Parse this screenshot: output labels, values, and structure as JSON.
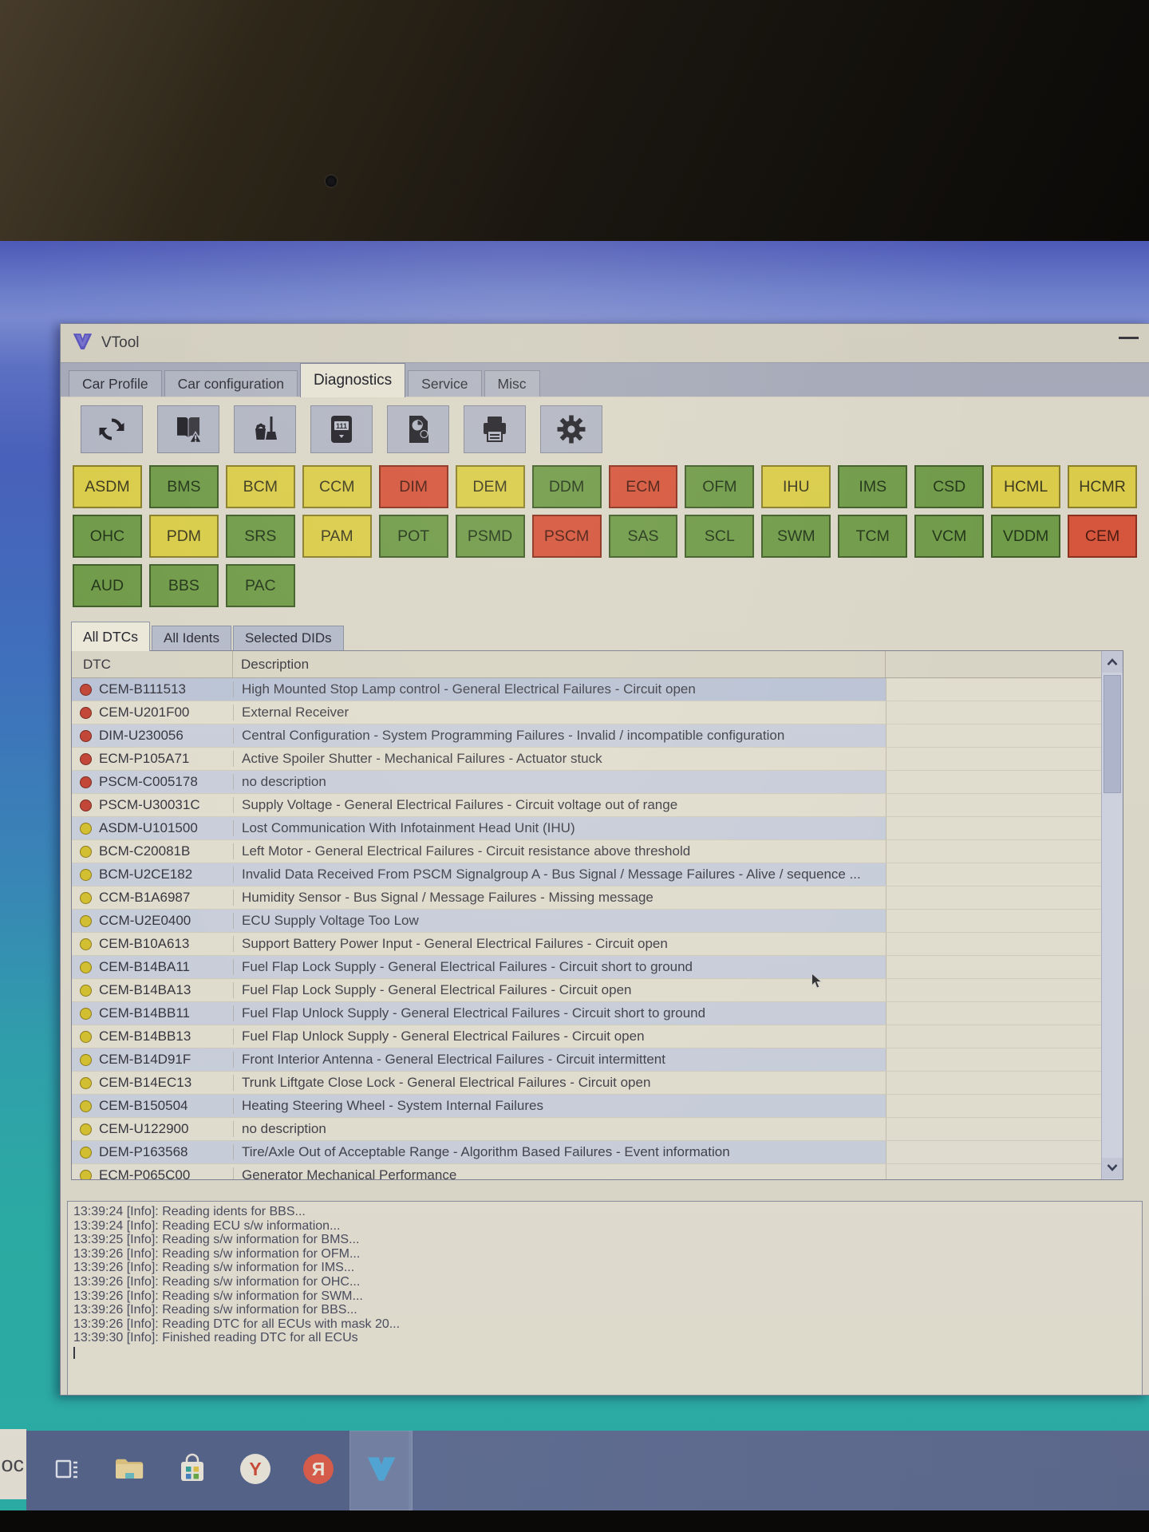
{
  "window": {
    "title": "VTool",
    "app_icon": "vtool-v-icon",
    "minimize_icon": "minimize-icon"
  },
  "main_tabs": [
    {
      "label": "Car Profile",
      "active": false
    },
    {
      "label": "Car configuration",
      "active": false
    },
    {
      "label": "Diagnostics",
      "active": true
    },
    {
      "label": "Service",
      "active": false
    },
    {
      "label": "Misc",
      "active": false
    }
  ],
  "toolbar": {
    "buttons": [
      {
        "icon": "refresh-icon"
      },
      {
        "icon": "read-dtc-book-warning-icon"
      },
      {
        "icon": "clear-dtc-broom-icon"
      },
      {
        "icon": "odometer-icon",
        "display_text": "111"
      },
      {
        "icon": "report-pie-icon"
      },
      {
        "icon": "print-icon"
      },
      {
        "icon": "settings-gear-icon"
      }
    ]
  },
  "ecu_buttons": [
    {
      "label": "ASDM",
      "status": "yellow"
    },
    {
      "label": "BMS",
      "status": "green"
    },
    {
      "label": "BCM",
      "status": "yellow"
    },
    {
      "label": "CCM",
      "status": "yellow"
    },
    {
      "label": "DIM",
      "status": "red"
    },
    {
      "label": "DEM",
      "status": "yellow"
    },
    {
      "label": "DDM",
      "status": "green"
    },
    {
      "label": "ECM",
      "status": "red"
    },
    {
      "label": "OFM",
      "status": "green"
    },
    {
      "label": "IHU",
      "status": "yellow"
    },
    {
      "label": "IMS",
      "status": "green"
    },
    {
      "label": "CSD",
      "status": "green"
    },
    {
      "label": "HCML",
      "status": "yellow"
    },
    {
      "label": "HCMR",
      "status": "yellow"
    },
    {
      "label": "OHC",
      "status": "green"
    },
    {
      "label": "PDM",
      "status": "yellow"
    },
    {
      "label": "SRS",
      "status": "green"
    },
    {
      "label": "PAM",
      "status": "yellow"
    },
    {
      "label": "POT",
      "status": "green"
    },
    {
      "label": "PSMD",
      "status": "green"
    },
    {
      "label": "PSCM",
      "status": "red"
    },
    {
      "label": "SAS",
      "status": "green"
    },
    {
      "label": "SCL",
      "status": "green"
    },
    {
      "label": "SWM",
      "status": "green"
    },
    {
      "label": "TCM",
      "status": "green"
    },
    {
      "label": "VCM",
      "status": "green"
    },
    {
      "label": "VDDM",
      "status": "green"
    },
    {
      "label": "CEM",
      "status": "red"
    },
    {
      "label": "AUD",
      "status": "green"
    },
    {
      "label": "BBS",
      "status": "green"
    },
    {
      "label": "PAC",
      "status": "green"
    }
  ],
  "dtc_tabs": [
    {
      "label": "All DTCs",
      "active": true
    },
    {
      "label": "All Idents",
      "active": false
    },
    {
      "label": "Selected DIDs",
      "active": false
    }
  ],
  "dtc_table": {
    "columns": [
      "DTC",
      "Description"
    ],
    "rows": [
      {
        "severity": "red",
        "code": "CEM-B111513",
        "description": "High Mounted Stop Lamp control - General Electrical Failures - Circuit open",
        "selected": true
      },
      {
        "severity": "red",
        "code": "CEM-U201F00",
        "description": "External Receiver"
      },
      {
        "severity": "red",
        "code": "DIM-U230056",
        "description": "Central Configuration - System Programming Failures - Invalid / incompatible configuration"
      },
      {
        "severity": "red",
        "code": "ECM-P105A71",
        "description": "Active Spoiler Shutter - Mechanical Failures - Actuator stuck"
      },
      {
        "severity": "red",
        "code": "PSCM-C005178",
        "description": "no description"
      },
      {
        "severity": "red",
        "code": "PSCM-U30031C",
        "description": "Supply Voltage - General Electrical Failures - Circuit voltage out of range"
      },
      {
        "severity": "yellow",
        "code": "ASDM-U101500",
        "description": "Lost Communication With Infotainment Head Unit (IHU)"
      },
      {
        "severity": "yellow",
        "code": "BCM-C20081B",
        "description": "Left Motor - General Electrical Failures - Circuit resistance above threshold"
      },
      {
        "severity": "yellow",
        "code": "BCM-U2CE182",
        "description": "Invalid Data Received From PSCM Signalgroup A - Bus Signal / Message Failures - Alive / sequence ..."
      },
      {
        "severity": "yellow",
        "code": "CCM-B1A6987",
        "description": "Humidity Sensor - Bus Signal / Message Failures - Missing message"
      },
      {
        "severity": "yellow",
        "code": "CCM-U2E0400",
        "description": "ECU Supply Voltage Too Low"
      },
      {
        "severity": "yellow",
        "code": "CEM-B10A613",
        "description": "Support Battery Power Input - General Electrical Failures - Circuit open"
      },
      {
        "severity": "yellow",
        "code": "CEM-B14BA11",
        "description": "Fuel Flap Lock Supply - General Electrical Failures - Circuit short to ground"
      },
      {
        "severity": "yellow",
        "code": "CEM-B14BA13",
        "description": "Fuel Flap Lock Supply - General Electrical Failures - Circuit open"
      },
      {
        "severity": "yellow",
        "code": "CEM-B14BB11",
        "description": "Fuel Flap Unlock Supply - General Electrical Failures - Circuit short to ground"
      },
      {
        "severity": "yellow",
        "code": "CEM-B14BB13",
        "description": "Fuel Flap Unlock Supply - General Electrical Failures - Circuit open"
      },
      {
        "severity": "yellow",
        "code": "CEM-B14D91F",
        "description": "Front Interior Antenna - General Electrical Failures - Circuit intermittent"
      },
      {
        "severity": "yellow",
        "code": "CEM-B14EC13",
        "description": "Trunk Liftgate Close Lock - General Electrical Failures - Circuit open"
      },
      {
        "severity": "yellow",
        "code": "CEM-B150504",
        "description": "Heating Steering Wheel - System Internal Failures"
      },
      {
        "severity": "yellow",
        "code": "CEM-U122900",
        "description": "no description"
      },
      {
        "severity": "yellow",
        "code": "DEM-P163568",
        "description": "Tire/Axle Out of Acceptable Range - Algorithm Based Failures - Event information"
      },
      {
        "severity": "yellow",
        "code": "ECM-P065C00",
        "description": "Generator Mechanical Performance"
      }
    ]
  },
  "log": {
    "lines": [
      "13:39:24 [Info]: Reading idents for BBS...",
      "13:39:24 [Info]: Reading ECU s/w information...",
      "13:39:25 [Info]: Reading s/w information for BMS...",
      "13:39:26 [Info]: Reading s/w information for OFM...",
      "13:39:26 [Info]: Reading s/w information for IMS...",
      "13:39:26 [Info]: Reading s/w information for OHC...",
      "13:39:26 [Info]: Reading s/w information for SWM...",
      "13:39:26 [Info]: Reading s/w information for BBS...",
      "13:39:26 [Info]: Reading DTC for all ECUs with mask 20...",
      "13:39:30 [Info]: Finished reading DTC for all ECUs"
    ]
  },
  "taskbar": {
    "items": [
      {
        "icon": "task-view-icon",
        "active": false
      },
      {
        "icon": "file-explorer-icon",
        "active": false
      },
      {
        "icon": "microsoft-store-icon",
        "active": false
      },
      {
        "icon": "yandex-browser-icon",
        "letter": "Y",
        "active": false
      },
      {
        "icon": "yandex-app-icon",
        "letter": "Я",
        "active": false
      },
      {
        "icon": "vtool-icon",
        "active": true
      }
    ]
  },
  "desktop": {
    "peek_text": "oc"
  },
  "colors": {
    "ecu_green": "#74a24d",
    "ecu_yellow": "#e3d64e",
    "ecu_red": "#de5940",
    "severity_red": "#cb4a3c",
    "severity_yellow": "#ddc934",
    "taskbar": "#5a6890",
    "desktop_top": "#4e5cc0",
    "desktop_bottom": "#2eb5ae",
    "window_bg": "#dad7ca",
    "selection": "#c3cde1"
  }
}
